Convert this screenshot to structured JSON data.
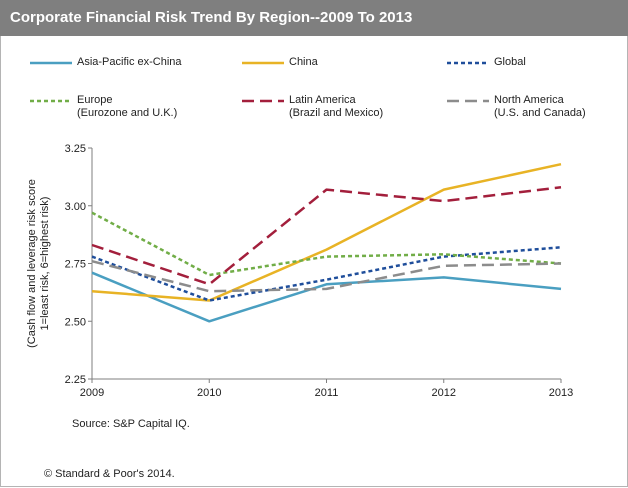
{
  "header": {
    "title": "Corporate Financial Risk  Trend By Region--2009  To 2013"
  },
  "legend": [
    {
      "label": "Asia-Pacific ex-China",
      "sub": ""
    },
    {
      "label": "China",
      "sub": ""
    },
    {
      "label": "Global",
      "sub": ""
    },
    {
      "label": "Europe",
      "sub": "(Eurozone and U.K.)"
    },
    {
      "label": "Latin America",
      "sub": "(Brazil and Mexico)"
    },
    {
      "label": "North America",
      "sub": "(U.S. and Canada)"
    }
  ],
  "source": "Source: S&P Capital IQ.",
  "copyright": "© Standard & Poor's 2014.",
  "chart_data": {
    "type": "line",
    "title": "Corporate Financial Risk  Trend By Region--2009  To 2013",
    "ylabel_line1": "(Cash flow and leverage risk score",
    "ylabel_line2": "1=least risk, 6=highest risk)",
    "xlabel": "",
    "x": [
      "2009",
      "2010",
      "2011",
      "2012",
      "2013"
    ],
    "ylim": [
      2.25,
      3.25
    ],
    "yticks": [
      "2.25",
      "2.50",
      "2.75",
      "3.00",
      "3.25"
    ],
    "grid": false,
    "legend_position": "top",
    "series": [
      {
        "name": "Asia-Pacific ex-China",
        "color": "#4a9fc1",
        "style": "solid",
        "values": [
          2.71,
          2.5,
          2.66,
          2.69,
          2.64
        ]
      },
      {
        "name": "China",
        "color": "#e8b325",
        "style": "solid",
        "values": [
          2.63,
          2.59,
          2.81,
          3.07,
          3.18
        ]
      },
      {
        "name": "Global",
        "color": "#1f4e9b",
        "style": "dash-short",
        "values": [
          2.78,
          2.59,
          2.68,
          2.78,
          2.82
        ]
      },
      {
        "name": "Europe",
        "color": "#71ad47",
        "style": "dash-short",
        "values": [
          2.97,
          2.7,
          2.78,
          2.79,
          2.75
        ]
      },
      {
        "name": "Latin America",
        "color": "#a31f3c",
        "style": "dash-long",
        "values": [
          2.83,
          2.66,
          3.07,
          3.02,
          3.08
        ]
      },
      {
        "name": "North America",
        "color": "#8c8c8c",
        "style": "dash-long",
        "values": [
          2.76,
          2.63,
          2.64,
          2.74,
          2.75
        ]
      }
    ]
  }
}
